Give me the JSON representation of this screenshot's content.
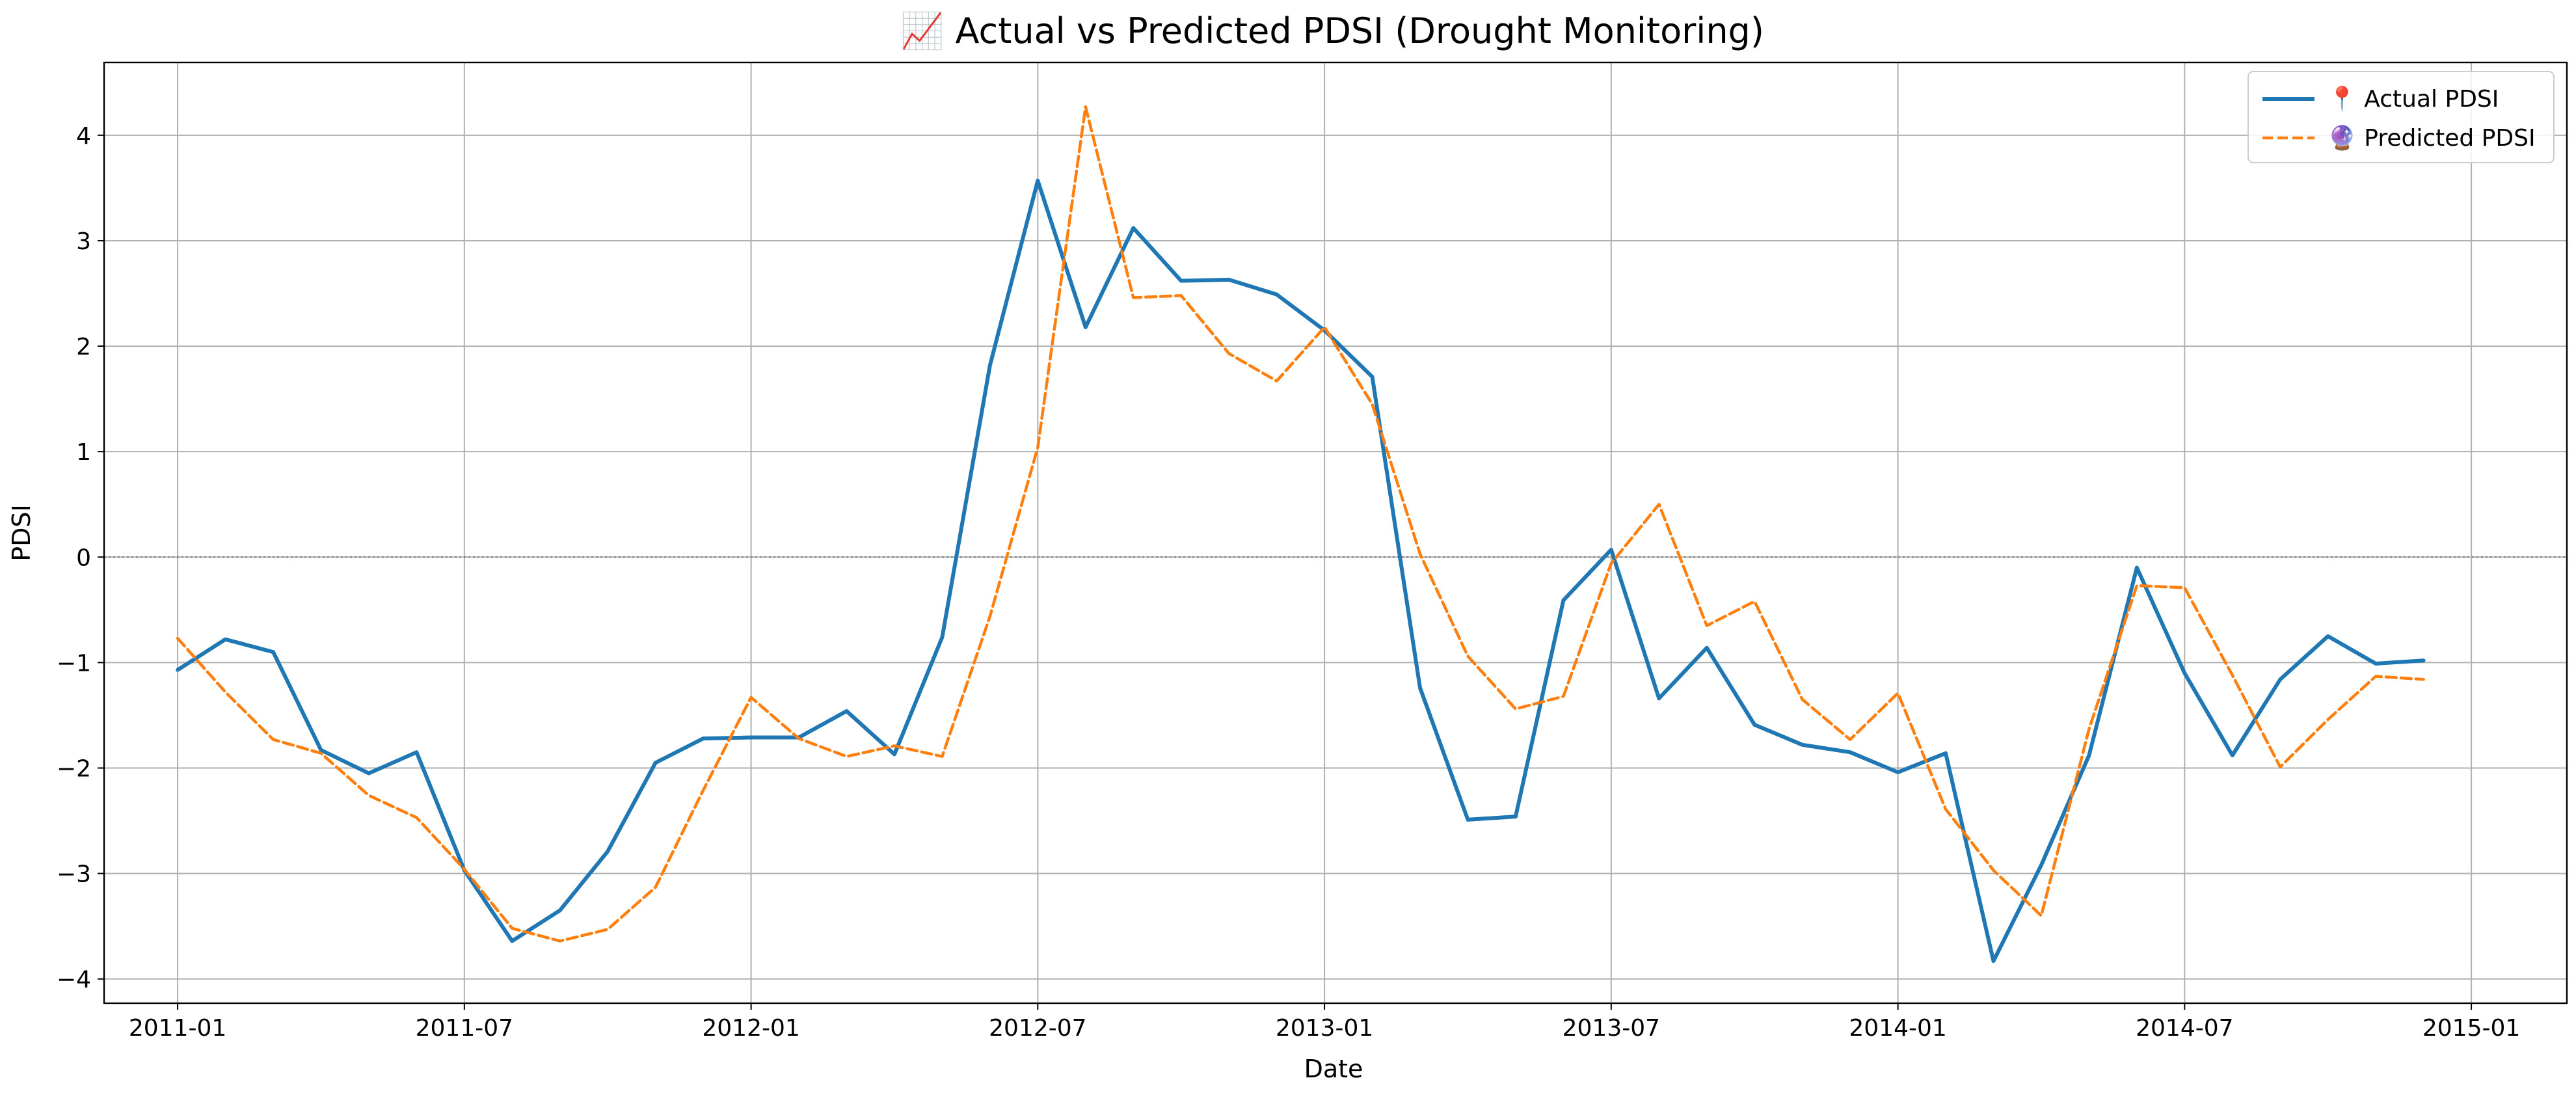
{
  "chart_data": {
    "type": "line",
    "title": "📈 Actual vs Predicted PDSI (Drought Monitoring)",
    "xlabel": "Date",
    "ylabel": "PDSI",
    "x": [
      "2011-01",
      "2011-02",
      "2011-03",
      "2011-04",
      "2011-05",
      "2011-06",
      "2011-07",
      "2011-08",
      "2011-09",
      "2011-10",
      "2011-11",
      "2011-12",
      "2012-01",
      "2012-02",
      "2012-03",
      "2012-04",
      "2012-05",
      "2012-06",
      "2012-07",
      "2012-08",
      "2012-09",
      "2012-10",
      "2012-11",
      "2012-12",
      "2013-01",
      "2013-02",
      "2013-03",
      "2013-04",
      "2013-05",
      "2013-06",
      "2013-07",
      "2013-08",
      "2013-09",
      "2013-10",
      "2013-11",
      "2013-12",
      "2014-01",
      "2014-02",
      "2014-03",
      "2014-04",
      "2014-05",
      "2014-06",
      "2014-07",
      "2014-08",
      "2014-09",
      "2014-10",
      "2014-11",
      "2014-12"
    ],
    "series": [
      {
        "name": "📍 Actual PDSI",
        "color": "#1f77b4",
        "style": "solid",
        "values": [
          -1.07,
          -0.78,
          -0.9,
          -1.83,
          -2.05,
          -1.85,
          -2.97,
          -3.64,
          -3.35,
          -2.79,
          -1.95,
          -1.72,
          -1.71,
          -1.71,
          -1.46,
          -1.87,
          -0.76,
          1.82,
          3.57,
          2.18,
          3.12,
          2.62,
          2.63,
          2.49,
          2.15,
          1.71,
          -1.24,
          -2.49,
          -2.46,
          -0.41,
          0.07,
          -1.34,
          -0.86,
          -1.59,
          -1.78,
          -1.85,
          -2.04,
          -1.86,
          -3.83,
          -2.92,
          -1.88,
          -0.1,
          -1.1,
          -1.88,
          -1.16,
          -0.75,
          -1.01,
          -0.98
        ]
      },
      {
        "name": "🔮 Predicted PDSI",
        "color": "#ff7f0e",
        "style": "dashed",
        "values": [
          -0.77,
          -1.28,
          -1.73,
          -1.86,
          -2.26,
          -2.47,
          -2.96,
          -3.52,
          -3.64,
          -3.53,
          -3.13,
          -2.21,
          -1.33,
          -1.72,
          -1.89,
          -1.79,
          -1.89,
          -0.56,
          1.04,
          4.27,
          2.46,
          2.48,
          1.93,
          1.67,
          2.18,
          1.45,
          0.03,
          -0.94,
          -1.44,
          -1.32,
          -0.06,
          0.5,
          -0.65,
          -0.42,
          -1.35,
          -1.73,
          -1.29,
          -2.39,
          -2.97,
          -3.4,
          -1.63,
          -0.27,
          -0.29,
          -1.12,
          -1.99,
          -1.54,
          -1.13,
          -1.16
        ]
      }
    ],
    "x_ticks": [
      "2011-01",
      "2011-07",
      "2012-01",
      "2012-07",
      "2013-01",
      "2013-07",
      "2014-01",
      "2014-07",
      "2015-01"
    ],
    "y_ticks": [
      -4,
      -3,
      -2,
      -1,
      0,
      1,
      2,
      3,
      4
    ],
    "y_tick_labels": [
      "−4",
      "−3",
      "−2",
      "−1",
      "0",
      "1",
      "2",
      "3",
      "4"
    ],
    "xlim": [
      "2010-11-15",
      "2015-03-01"
    ],
    "ylim": [
      -4.23,
      4.69
    ],
    "grid": true,
    "zero_reference_line": true,
    "legend_location": "top-right"
  }
}
